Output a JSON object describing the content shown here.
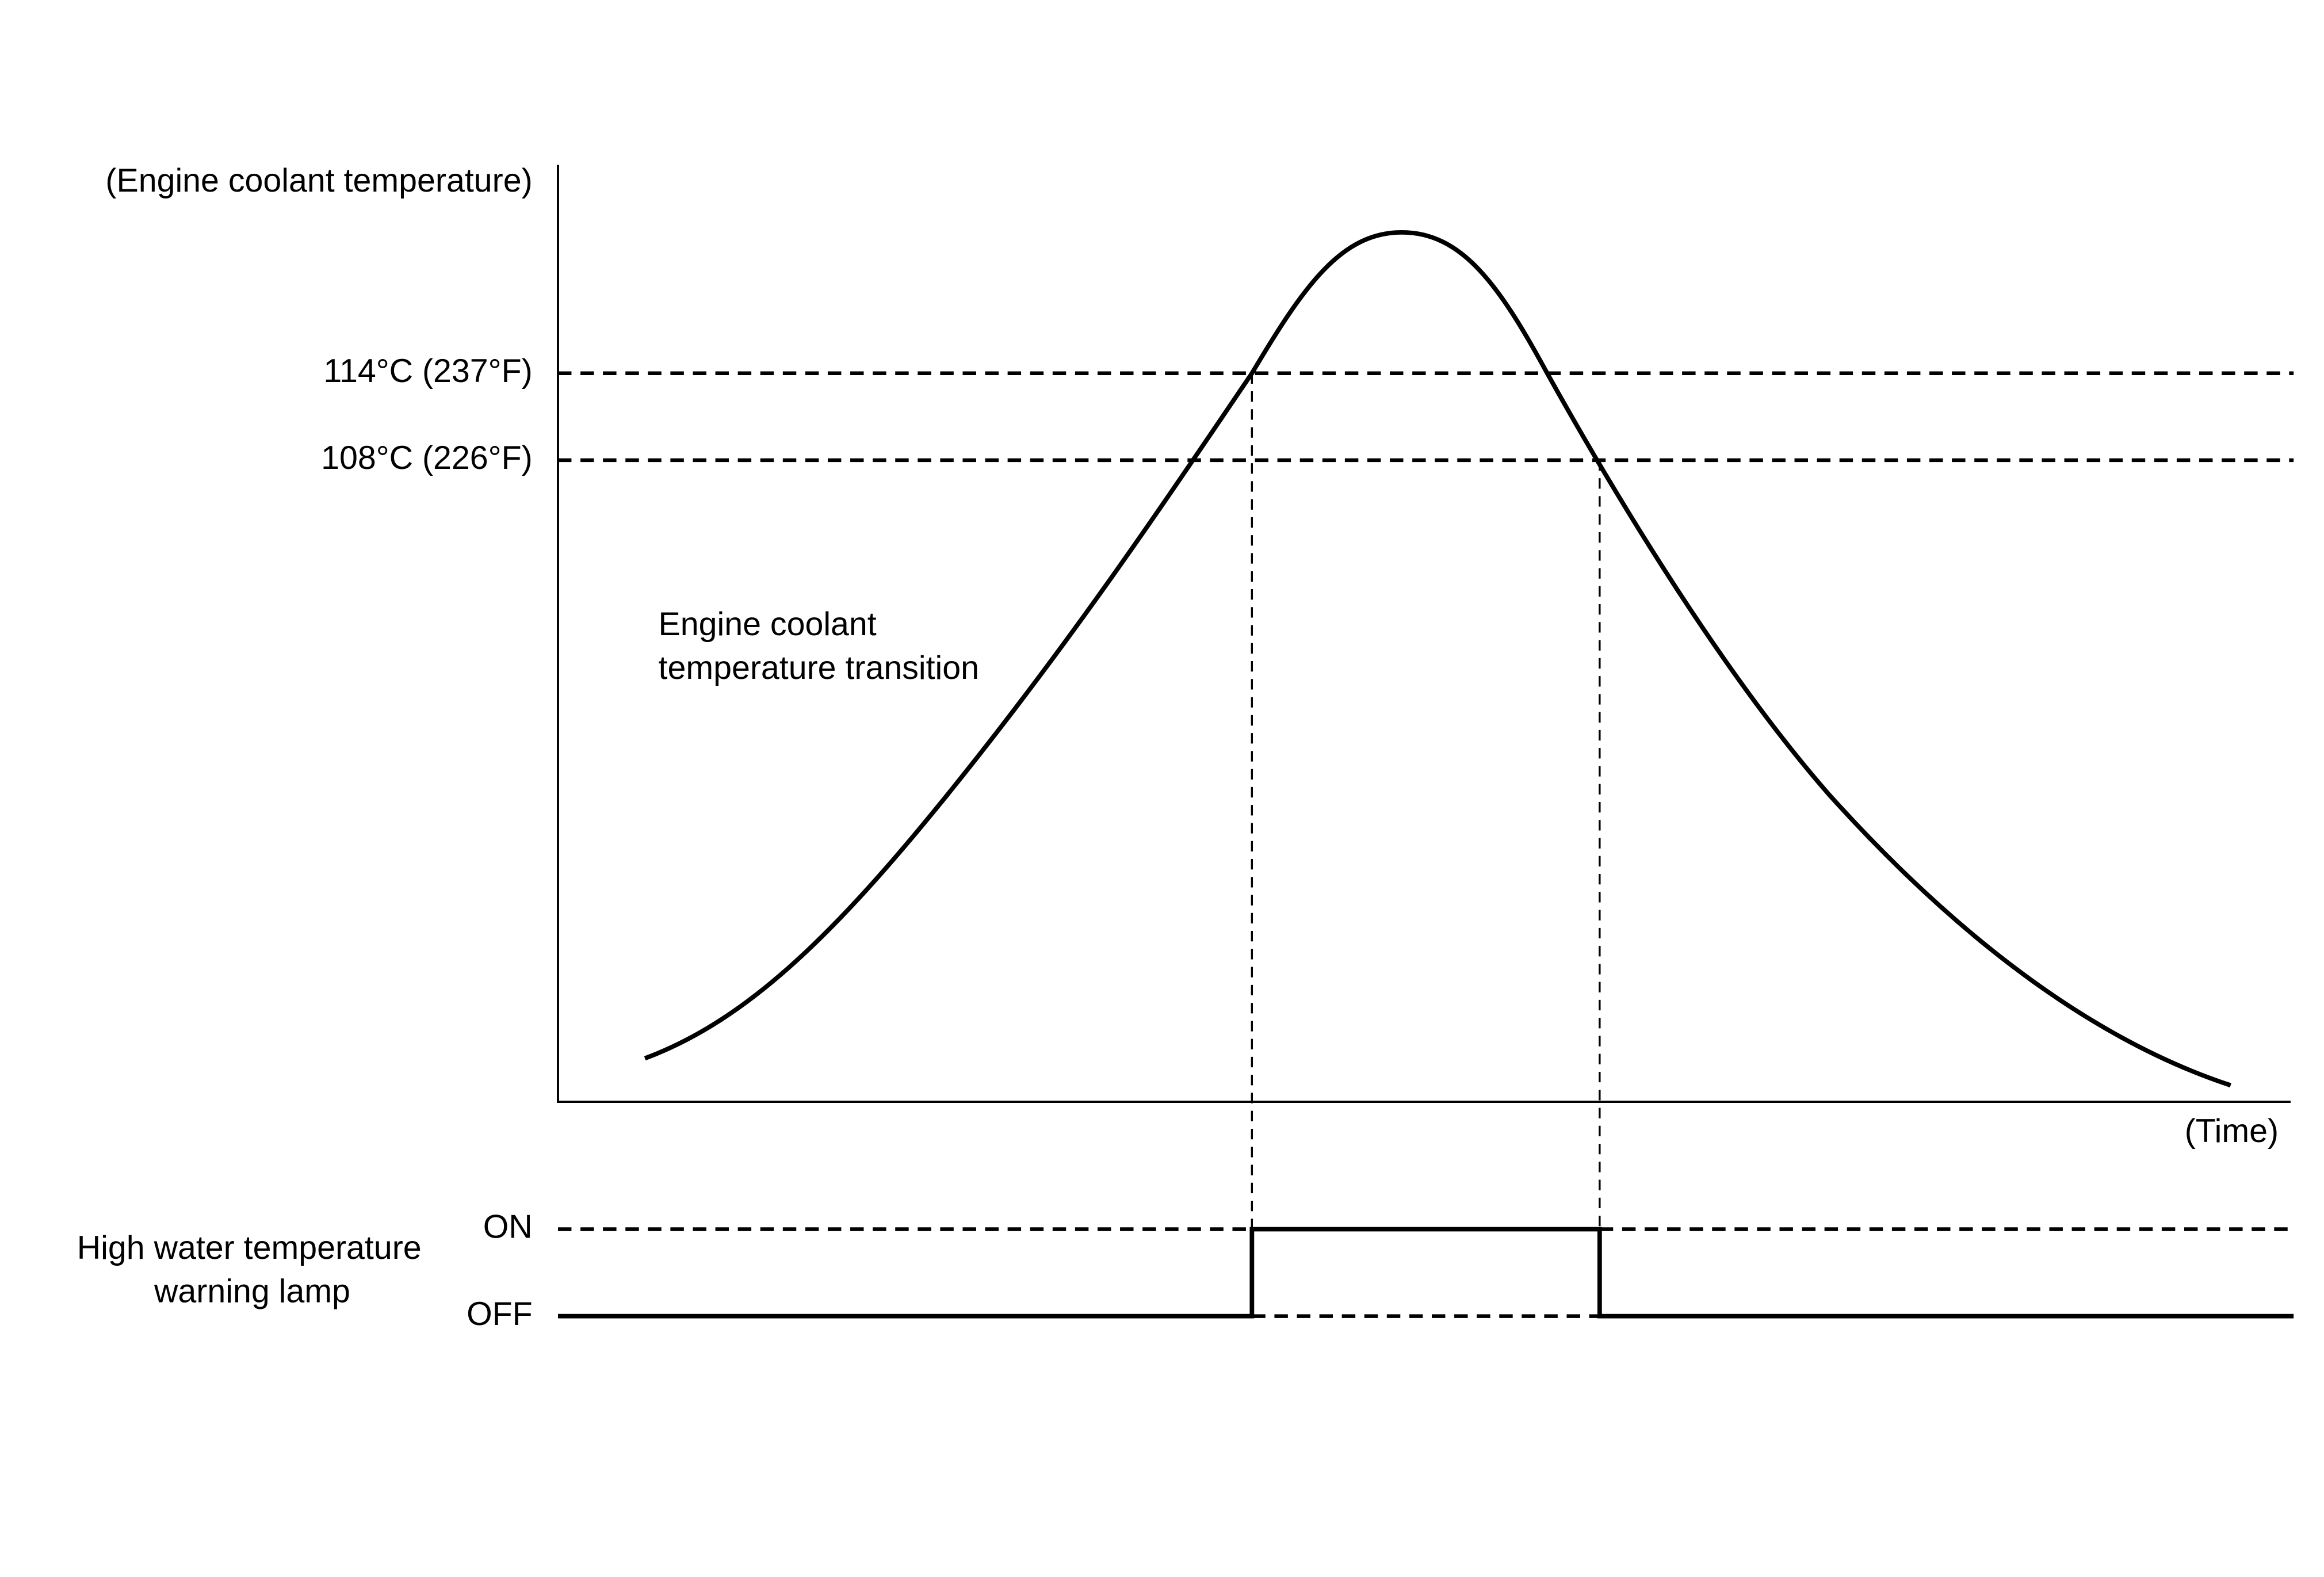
{
  "diagram": {
    "y_axis_label": "(Engine coolant temperature)",
    "thresholds": [
      "114°C (237°F)",
      "108°C (226°F)"
    ],
    "curve_label": [
      "Engine coolant",
      "temperature transition"
    ],
    "x_axis_label": "(Time)",
    "lamp": {
      "label": [
        "High water temperature",
        "warning lamp"
      ],
      "on": "ON",
      "off": "OFF"
    }
  }
}
